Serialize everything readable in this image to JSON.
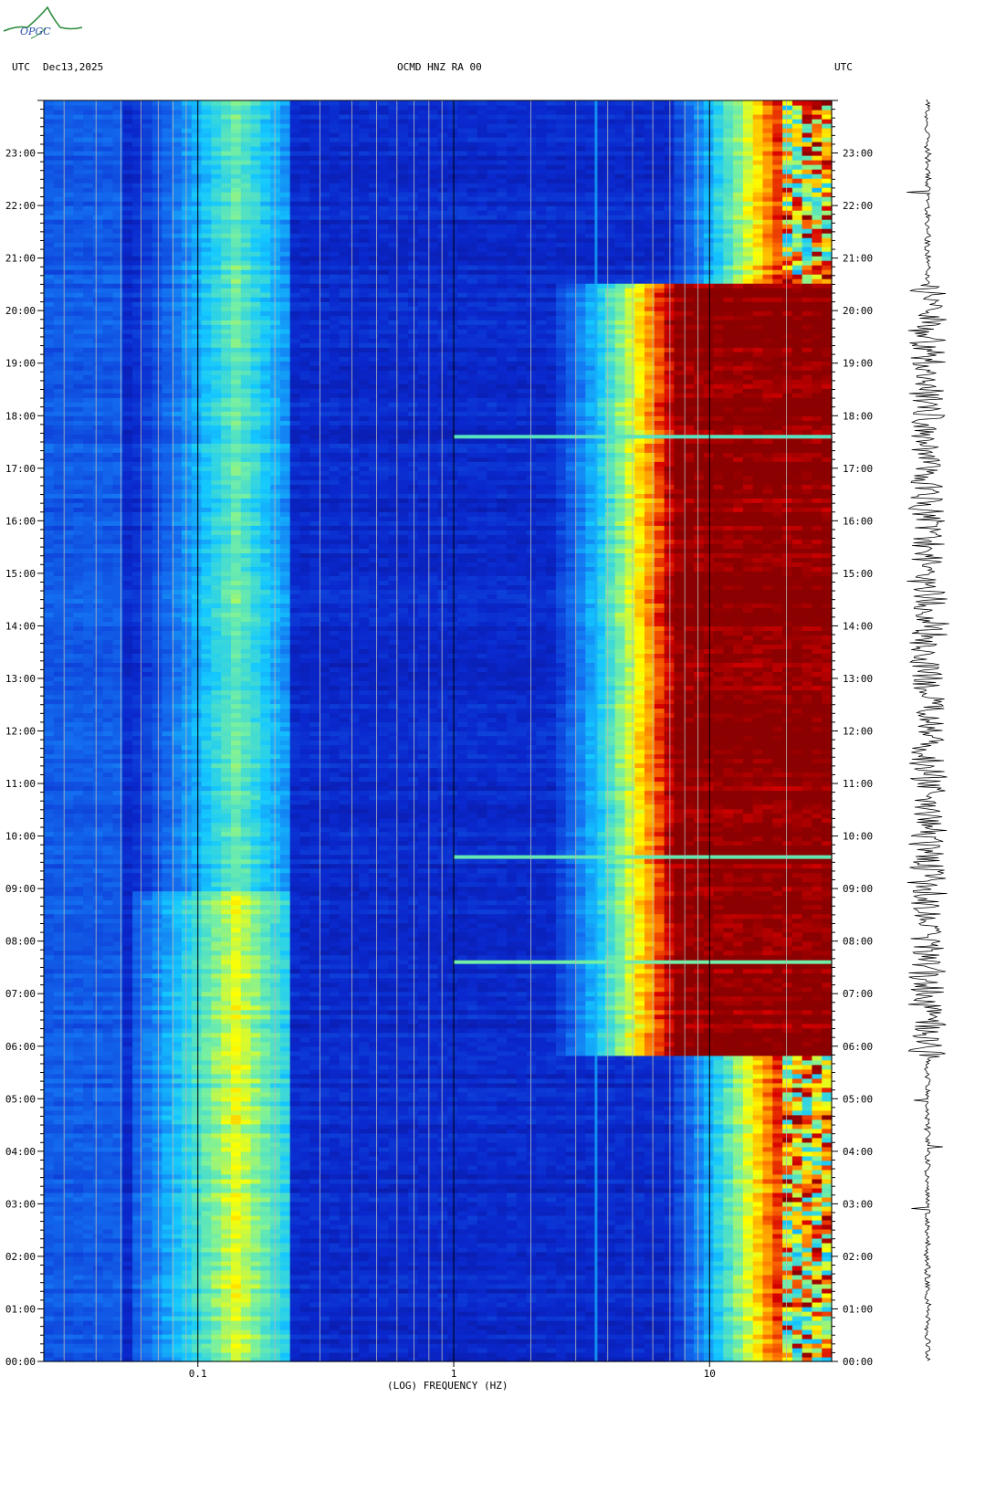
{
  "header": {
    "left_tz": "UTC",
    "date": "Dec13,2025",
    "station": "OCMD HNZ RA 00",
    "right_tz": "UTC"
  },
  "logo": {
    "text": "OPGC"
  },
  "colors": {
    "low": "#0a28c8",
    "mid": "#19d2ff",
    "high": "#ffff00",
    "max": "#8b0000"
  },
  "chart_data": {
    "type": "heatmap",
    "title": "OCMD HNZ RA 00",
    "xlabel": "(LOG) FREQUENCY (HZ)",
    "ylabel": "UTC",
    "x_scale": "log",
    "xlim": [
      0.025,
      30
    ],
    "x_ticks": [
      {
        "value": 0.1,
        "label": "0.1"
      },
      {
        "value": 1,
        "label": "1"
      },
      {
        "value": 10,
        "label": "10"
      }
    ],
    "ylim_hours": [
      0,
      24
    ],
    "y_ticks": [
      "00:00",
      "01:00",
      "02:00",
      "03:00",
      "04:00",
      "05:00",
      "06:00",
      "07:00",
      "08:00",
      "09:00",
      "10:00",
      "11:00",
      "12:00",
      "13:00",
      "14:00",
      "15:00",
      "16:00",
      "17:00",
      "18:00",
      "19:00",
      "20:00",
      "21:00",
      "22:00",
      "23:00"
    ],
    "grid": true,
    "features": {
      "microseism_band_hz": [
        0.1,
        0.2
      ],
      "high_noise_edge_hz": {
        "night": 20,
        "day": 7
      },
      "persistent_line_hz": 3.6,
      "events_utc_hours": [
        17.6,
        9.6,
        7.6
      ]
    }
  }
}
